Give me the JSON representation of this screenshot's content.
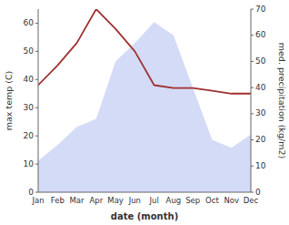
{
  "chart_data": {
    "type": "line",
    "categories": [
      "Jan",
      "Feb",
      "Mar",
      "Apr",
      "May",
      "Jun",
      "Jul",
      "Aug",
      "Sep",
      "Oct",
      "Nov",
      "Dec"
    ],
    "series": [
      {
        "type": "area",
        "axis": "y2",
        "color": "#b0bdf0",
        "values": [
          12,
          18,
          25,
          28,
          50,
          57,
          65,
          60,
          40,
          20,
          17,
          22
        ]
      },
      {
        "type": "line",
        "color": "#a03030",
        "values": [
          38,
          45,
          53,
          65,
          58,
          50,
          38,
          37,
          37,
          36,
          35,
          35
        ]
      }
    ],
    "xlabel": "date (month)",
    "ylabel": "max temp (C)",
    "y2label": "med. precipitation (kg/m2)",
    "ylim": [
      0,
      65
    ],
    "yticks": [
      0,
      10,
      20,
      30,
      40,
      50,
      60
    ],
    "y2lim": [
      0,
      70
    ],
    "y2ticks": [
      0,
      10,
      20,
      30,
      40,
      50,
      60,
      70
    ],
    "grid": false
  }
}
